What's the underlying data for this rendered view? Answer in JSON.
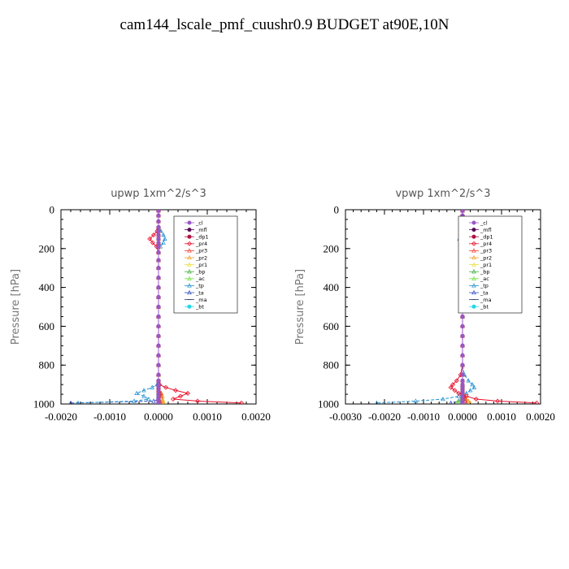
{
  "figure_title": "cam144_lscale_pmf_cuushr0.9  BUDGET at90E,10N",
  "chart_data": [
    {
      "type": "line",
      "title": "upwp   1xm^2/s^3",
      "ylabel": "Pressure [hPa]",
      "xlim": [
        -0.002,
        0.002
      ],
      "ylim": [
        1000,
        0
      ],
      "xticks": [
        "-0.0020",
        "-0.0010",
        "0.0000",
        "0.0010",
        "0.0020"
      ],
      "yticks": [
        "0",
        "200",
        "400",
        "600",
        "800",
        "1000"
      ],
      "legend_position": "top-right",
      "levels": [
        5,
        30,
        60,
        90,
        110,
        130,
        150,
        170,
        190,
        220,
        260,
        300,
        350,
        400,
        450,
        500,
        550,
        600,
        650,
        700,
        750,
        800,
        850,
        880,
        900,
        915,
        930,
        945,
        960,
        975,
        985,
        995
      ],
      "series": [
        {
          "name": "_cl",
          "color": "#9a55c8",
          "values": [
            0,
            0,
            0,
            0,
            0,
            0,
            0,
            0,
            0,
            0,
            0,
            0,
            0,
            0,
            0,
            0,
            0,
            0,
            0,
            0,
            0,
            0,
            0,
            0,
            0,
            0,
            0,
            0,
            0,
            0,
            0,
            0
          ]
        },
        {
          "name": "_mfl",
          "color": "#5a0a5a",
          "values": [
            0,
            0,
            0,
            0,
            0,
            0,
            0,
            0,
            0,
            0,
            0,
            0,
            0,
            0,
            0,
            0,
            0,
            0,
            0,
            0,
            0,
            0,
            0,
            0,
            0,
            0,
            0,
            0,
            0,
            0,
            0,
            0
          ]
        },
        {
          "name": "_dp1",
          "color": "#b01040",
          "values": [
            0,
            0,
            0,
            0,
            0,
            0,
            0,
            0,
            0,
            0,
            0,
            0,
            0,
            0,
            0,
            0,
            0,
            0,
            0,
            0,
            0,
            0,
            0,
            0,
            0,
            0,
            0,
            0,
            0,
            0,
            0,
            0
          ]
        },
        {
          "name": "_pr4",
          "color": "#e8102a",
          "values": [
            0,
            0,
            0,
            0,
            -3e-05,
            -0.0001,
            -0.00018,
            -0.00012,
            -4e-05,
            0,
            0,
            0,
            0,
            0,
            0,
            0,
            0,
            0,
            0,
            0,
            0,
            0,
            0,
            0,
            2e-05,
            0.00015,
            0.00035,
            0.0006,
            0.00045,
            0.0003,
            0.0008,
            0.0017
          ]
        },
        {
          "name": "_pr3",
          "color": "#f04030",
          "values": [
            0,
            0,
            0,
            0,
            0,
            0,
            0,
            0,
            0,
            0,
            0,
            0,
            0,
            0,
            0,
            0,
            0,
            0,
            0,
            0,
            0,
            0,
            0,
            0,
            0,
            0,
            0,
            5e-05,
            5e-05,
            0,
            3e-05,
            5e-05
          ]
        },
        {
          "name": "_pr2",
          "color": "#f0a030",
          "values": [
            0,
            0,
            0,
            0,
            0,
            0,
            0,
            0,
            0,
            0,
            0,
            0,
            0,
            0,
            0,
            0,
            0,
            0,
            0,
            0,
            0,
            0,
            0,
            0,
            0,
            0,
            0,
            6e-05,
            8e-05,
            8e-05,
            8e-05,
            0.0001
          ]
        },
        {
          "name": "_pr1",
          "color": "#e8e040",
          "values": [
            0,
            0,
            0,
            0,
            0,
            0,
            0,
            0,
            0,
            0,
            0,
            0,
            0,
            0,
            0,
            0,
            0,
            0,
            0,
            0,
            0,
            0,
            0,
            0,
            0,
            0,
            0,
            5e-05,
            8e-05,
            8e-05,
            0.0001,
            0.00012
          ]
        },
        {
          "name": "_bp",
          "color": "#40b040",
          "values": [
            0,
            0,
            0,
            0,
            0,
            0,
            0,
            0,
            0,
            0,
            0,
            0,
            0,
            0,
            0,
            0,
            0,
            0,
            0,
            0,
            0,
            0,
            0,
            0,
            0,
            0,
            0,
            0,
            0,
            0,
            0,
            0
          ]
        },
        {
          "name": "_ac",
          "color": "#70e040",
          "values": [
            0,
            0,
            0,
            0,
            0,
            0,
            0,
            0,
            0,
            0,
            0,
            0,
            0,
            0,
            0,
            0,
            0,
            0,
            0,
            0,
            0,
            0,
            0,
            0,
            0,
            0,
            0,
            0,
            0,
            0,
            0,
            0
          ]
        },
        {
          "name": "_tp",
          "color": "#2090d0",
          "values": [
            0,
            0,
            0,
            0,
            5e-05,
            0.0001,
            0.00013,
            0.0001,
            4e-05,
            0,
            0,
            0,
            0,
            0,
            0,
            0,
            0,
            0,
            0,
            0,
            0,
            0,
            0,
            0,
            -3e-05,
            -0.00013,
            -0.0003,
            -0.00045,
            -0.0003,
            -0.0002,
            -0.0005,
            -0.00165
          ]
        },
        {
          "name": "_ta",
          "color": "#3050c0",
          "values": [
            0,
            0,
            0,
            0,
            0,
            0,
            0,
            0,
            0,
            0,
            0,
            0,
            0,
            0,
            0,
            0,
            0,
            0,
            0,
            0,
            0,
            0,
            0,
            0,
            0,
            0,
            0,
            0,
            0,
            0,
            -0.0001,
            -0.0018
          ]
        },
        {
          "name": "_ma",
          "color": "#204070",
          "values": [
            0,
            0,
            0,
            0,
            0,
            0,
            0,
            0,
            0,
            0,
            0,
            0,
            0,
            0,
            0,
            0,
            0,
            0,
            0,
            0,
            0,
            0,
            0,
            0,
            0,
            0,
            0,
            0,
            0,
            0,
            0,
            0
          ]
        },
        {
          "name": "_bt",
          "color": "#20d8e8",
          "values": [
            0,
            0,
            0,
            0,
            0,
            0,
            0,
            0,
            0,
            0,
            0,
            0,
            0,
            0,
            0,
            0,
            0,
            0,
            0,
            0,
            0,
            0,
            0,
            0,
            0,
            0,
            0,
            0,
            0,
            0,
            0,
            0
          ]
        }
      ]
    },
    {
      "type": "line",
      "title": "vpwp   1xm^2/s^3",
      "ylabel": "Pressure [hPa]",
      "xlim": [
        -0.003,
        0.002
      ],
      "ylim": [
        1000,
        0
      ],
      "xticks": [
        "-0.0030",
        "-0.0020",
        "-0.0010",
        "0.0000",
        "0.0010",
        "0.0020"
      ],
      "yticks": [
        "0",
        "200",
        "400",
        "600",
        "800",
        "1000"
      ],
      "legend_position": "top-right",
      "levels": [
        5,
        30,
        60,
        90,
        110,
        130,
        150,
        170,
        190,
        220,
        260,
        300,
        350,
        400,
        450,
        500,
        550,
        600,
        650,
        700,
        750,
        800,
        850,
        880,
        900,
        915,
        930,
        945,
        960,
        975,
        985,
        995
      ],
      "series": [
        {
          "name": "_cl",
          "color": "#9a55c8",
          "values": [
            0,
            0,
            0,
            0,
            0,
            0,
            0,
            0,
            0,
            0,
            0,
            0,
            0,
            0,
            0,
            0,
            0,
            0,
            0,
            0,
            0,
            0,
            0,
            0,
            0,
            0,
            0,
            0,
            0,
            0,
            0,
            0
          ]
        },
        {
          "name": "_mfl",
          "color": "#5a0a5a",
          "values": [
            0,
            0,
            0,
            0,
            0,
            0,
            0,
            0,
            0,
            0,
            0,
            0,
            0,
            0,
            0,
            0,
            0,
            0,
            0,
            0,
            0,
            0,
            0,
            0,
            0,
            0,
            0,
            0,
            0,
            0,
            0,
            0
          ]
        },
        {
          "name": "_dp1",
          "color": "#b01040",
          "values": [
            0,
            0,
            0,
            0,
            0,
            0,
            0,
            0,
            0,
            0,
            0,
            0,
            0,
            0,
            0,
            0,
            0,
            0,
            0,
            0,
            0,
            0,
            0,
            0,
            0,
            0,
            0,
            0,
            0,
            0,
            0,
            0
          ]
        },
        {
          "name": "_pr4",
          "color": "#e8102a",
          "values": [
            0,
            0,
            0,
            0,
            0,
            4e-05,
            8e-05,
            4e-05,
            0,
            0,
            0,
            0,
            0,
            0,
            0,
            0,
            0,
            0,
            0,
            0,
            0,
            0,
            -5e-05,
            -0.00015,
            -0.00025,
            -0.0003,
            -0.0002,
            -0.0001,
            0.0001,
            0.00035,
            0.0009,
            0.0019
          ]
        },
        {
          "name": "_pr3",
          "color": "#f04030",
          "values": [
            0,
            0,
            0,
            0,
            0,
            0,
            0,
            0,
            0,
            0,
            0,
            0,
            0,
            0,
            0,
            0,
            0,
            0,
            0,
            0,
            0,
            0,
            0,
            0,
            0,
            0,
            0,
            0,
            4e-05,
            6e-05,
            8e-05,
            0.0001
          ]
        },
        {
          "name": "_pr2",
          "color": "#f0a030",
          "values": [
            0,
            0,
            0,
            0,
            0,
            0,
            0,
            0,
            0,
            0,
            0,
            0,
            0,
            0,
            0,
            0,
            0,
            0,
            0,
            0,
            0,
            0,
            0,
            0,
            0,
            0,
            0,
            0,
            5e-05,
            0.0001,
            0.00015,
            0.0002
          ]
        },
        {
          "name": "_pr1",
          "color": "#e8e040",
          "values": [
            0,
            0,
            0,
            0,
            0,
            0,
            0,
            0,
            0,
            0,
            0,
            0,
            0,
            0,
            0,
            0,
            0,
            0,
            0,
            0,
            0,
            0,
            0,
            0,
            0,
            0,
            0,
            0,
            5e-05,
            0.0001,
            0.00015,
            0.0002
          ]
        },
        {
          "name": "_bp",
          "color": "#40b040",
          "values": [
            0,
            0,
            0,
            0,
            0,
            0,
            0,
            0,
            0,
            0,
            0,
            0,
            0,
            0,
            0,
            0,
            0,
            0,
            0,
            0,
            0,
            0,
            0,
            0,
            0,
            0,
            0,
            0,
            0,
            0,
            0,
            0
          ]
        },
        {
          "name": "_ac",
          "color": "#70e040",
          "values": [
            0,
            0,
            0,
            0,
            0,
            0,
            0,
            0,
            0,
            0,
            0,
            0,
            0,
            0,
            0,
            0,
            0,
            0,
            0,
            0,
            0,
            0,
            0,
            0,
            0,
            0,
            0,
            0,
            0,
            -3e-05,
            -8e-05,
            -0.00015
          ]
        },
        {
          "name": "_tp",
          "color": "#2090d0",
          "values": [
            0,
            0,
            0,
            0,
            0,
            -4e-05,
            -8e-05,
            -4e-05,
            0,
            0,
            0,
            0,
            0,
            0,
            0,
            0,
            0,
            0,
            0,
            0,
            0,
            0,
            5e-05,
            0.00015,
            0.00025,
            0.0003,
            0.0002,
            0.0001,
            -0.0001,
            -0.0005,
            -0.0012,
            -0.0022
          ]
        },
        {
          "name": "_ta",
          "color": "#3050c0",
          "values": [
            0,
            0,
            0,
            0,
            0,
            0,
            0,
            0,
            0,
            0,
            0,
            0,
            0,
            0,
            0,
            0,
            0,
            0,
            0,
            0,
            0,
            0,
            0,
            0,
            0,
            0,
            0,
            0,
            0,
            0,
            -0.0001,
            -0.0003
          ]
        },
        {
          "name": "_ma",
          "color": "#204070",
          "values": [
            0,
            0,
            0,
            0,
            0,
            0,
            0,
            0,
            0,
            0,
            0,
            0,
            0,
            0,
            0,
            0,
            0,
            0,
            0,
            0,
            0,
            0,
            0,
            0,
            0,
            0,
            0,
            0,
            0,
            0,
            0,
            0
          ]
        },
        {
          "name": "_bt",
          "color": "#20d8e8",
          "values": [
            0,
            0,
            0,
            0,
            0,
            0,
            0,
            0,
            0,
            0,
            0,
            0,
            0,
            0,
            0,
            0,
            0,
            0,
            0,
            0,
            0,
            0,
            0,
            0,
            0,
            0,
            0,
            0,
            0,
            0,
            0,
            0
          ]
        }
      ]
    }
  ]
}
